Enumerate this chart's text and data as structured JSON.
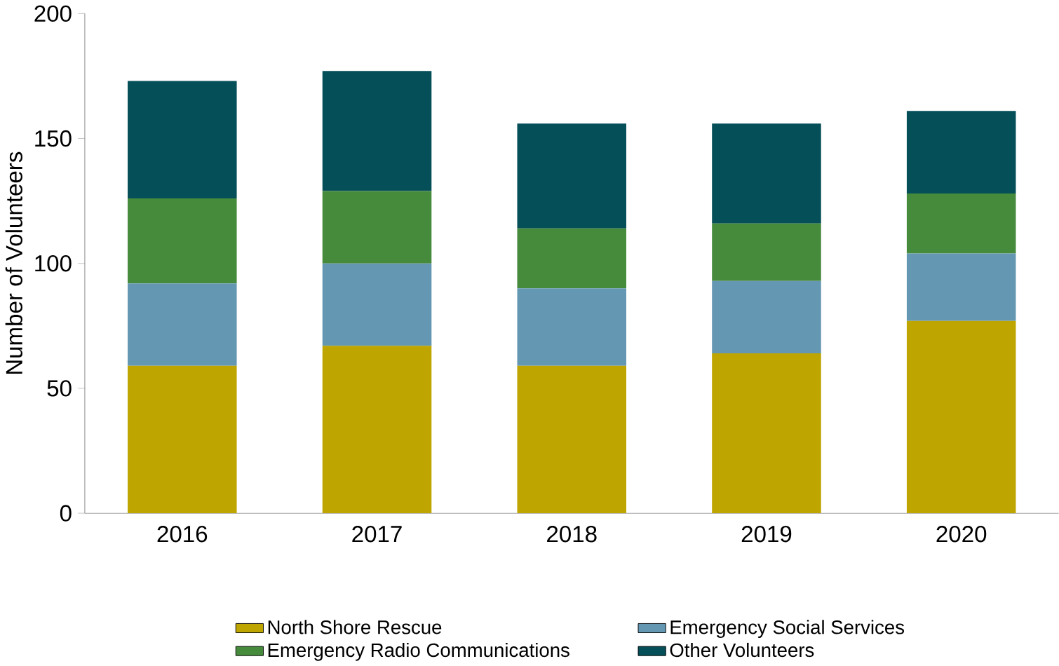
{
  "chart_data": {
    "type": "bar",
    "stacked": true,
    "ylabel": "Number of Volunteers",
    "categories": [
      "2016",
      "2017",
      "2018",
      "2019",
      "2020"
    ],
    "ylim": [
      0,
      200
    ],
    "yticks": [
      0,
      50,
      100,
      150,
      200
    ],
    "legend": "bottom",
    "grid": false,
    "series": [
      {
        "name": "North Shore Rescue",
        "color": "#bfa500",
        "values": [
          59,
          67,
          59,
          64,
          77
        ]
      },
      {
        "name": "Emergency Social Services",
        "color": "#6497b1",
        "values": [
          33,
          33,
          31,
          29,
          27
        ]
      },
      {
        "name": "Emergency Radio Communications",
        "color": "#468a3c",
        "values": [
          34,
          29,
          24,
          23,
          24
        ]
      },
      {
        "name": "Other Volunteers",
        "color": "#054f59",
        "values": [
          47,
          48,
          42,
          40,
          33
        ]
      }
    ]
  }
}
